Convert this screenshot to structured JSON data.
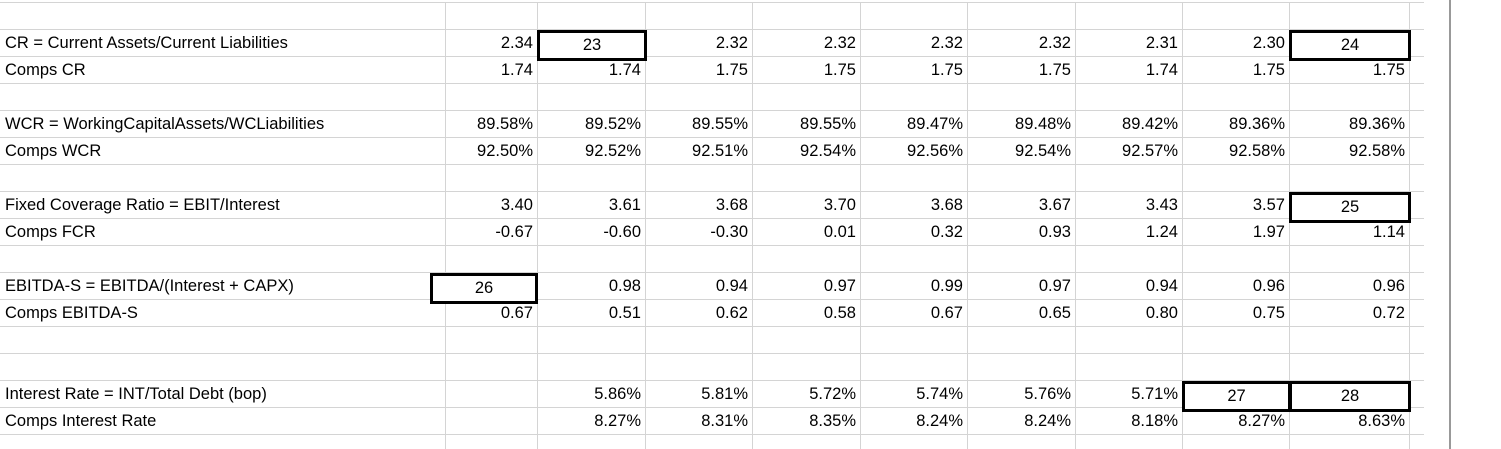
{
  "colors": {
    "grid_line": "#d4d4d4",
    "text": "#000000",
    "answer_box_border": "#000000",
    "pane_divider": "#999999",
    "background": "#ffffff"
  },
  "table": {
    "rows": [
      {
        "label": "",
        "values": [
          "",
          "",
          "",
          "",
          "",
          "",
          "",
          "",
          ""
        ]
      },
      {
        "label": "CR = Current Assets/Current Liabilities",
        "values": [
          "2.34",
          "",
          "2.32",
          "2.32",
          "2.32",
          "2.32",
          "2.31",
          "2.30",
          ""
        ]
      },
      {
        "label": "Comps CR",
        "values": [
          "1.74",
          "1.74",
          "1.75",
          "1.75",
          "1.75",
          "1.75",
          "1.74",
          "1.75",
          "1.75"
        ]
      },
      {
        "label": "",
        "values": [
          "",
          "",
          "",
          "",
          "",
          "",
          "",
          "",
          ""
        ]
      },
      {
        "label": "WCR = WorkingCapitalAssets/WCLiabilities",
        "values": [
          "89.58%",
          "89.52%",
          "89.55%",
          "89.55%",
          "89.47%",
          "89.48%",
          "89.42%",
          "89.36%",
          "89.36%"
        ]
      },
      {
        "label": "Comps WCR",
        "values": [
          "92.50%",
          "92.52%",
          "92.51%",
          "92.54%",
          "92.56%",
          "92.54%",
          "92.57%",
          "92.58%",
          "92.58%"
        ]
      },
      {
        "label": "",
        "values": [
          "",
          "",
          "",
          "",
          "",
          "",
          "",
          "",
          ""
        ]
      },
      {
        "label": "Fixed Coverage Ratio = EBIT/Interest",
        "values": [
          "3.40",
          "3.61",
          "3.68",
          "3.70",
          "3.68",
          "3.67",
          "3.43",
          "3.57",
          ""
        ]
      },
      {
        "label": "Comps FCR",
        "values": [
          "-0.67",
          "-0.60",
          "-0.30",
          "0.01",
          "0.32",
          "0.93",
          "1.24",
          "1.97",
          "1.14"
        ]
      },
      {
        "label": "",
        "values": [
          "",
          "",
          "",
          "",
          "",
          "",
          "",
          "",
          ""
        ]
      },
      {
        "label": "EBITDA-S = EBITDA/(Interest + CAPX)",
        "values": [
          "",
          "0.98",
          "0.94",
          "0.97",
          "0.99",
          "0.97",
          "0.94",
          "0.96",
          "0.96"
        ]
      },
      {
        "label": "Comps EBITDA-S",
        "values": [
          "0.67",
          "0.51",
          "0.62",
          "0.58",
          "0.67",
          "0.65",
          "0.80",
          "0.75",
          "0.72"
        ]
      },
      {
        "label": "",
        "values": [
          "",
          "",
          "",
          "",
          "",
          "",
          "",
          "",
          ""
        ]
      },
      {
        "label": "",
        "values": [
          "",
          "",
          "",
          "",
          "",
          "",
          "",
          "",
          ""
        ]
      },
      {
        "label": "Interest Rate = INT/Total Debt (bop)",
        "values": [
          "",
          "5.86%",
          "5.81%",
          "5.72%",
          "5.74%",
          "5.76%",
          "5.71%",
          "",
          ""
        ]
      },
      {
        "label": "Comps Interest Rate",
        "values": [
          "",
          "8.27%",
          "8.31%",
          "8.35%",
          "8.24%",
          "8.24%",
          "8.18%",
          "8.27%",
          "8.63%"
        ]
      },
      {
        "label": "",
        "values": [
          "",
          "",
          "",
          "",
          "",
          "",
          "",
          "",
          ""
        ]
      }
    ],
    "answer_boxes": [
      {
        "id": "23",
        "row": 1,
        "col": 1
      },
      {
        "id": "24",
        "row": 1,
        "col": 8
      },
      {
        "id": "25",
        "row": 7,
        "col": 8
      },
      {
        "id": "26",
        "row": 10,
        "col": 0
      },
      {
        "id": "27",
        "row": 14,
        "col": 7
      },
      {
        "id": "28",
        "row": 14,
        "col": 8
      }
    ]
  }
}
